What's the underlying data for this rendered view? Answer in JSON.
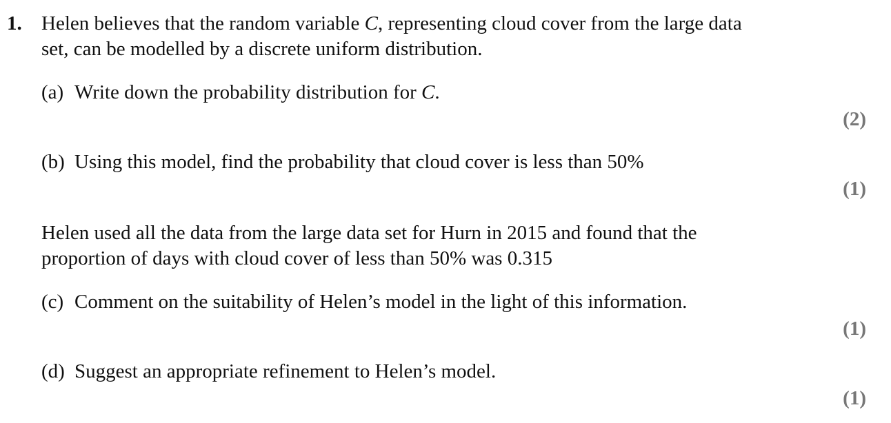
{
  "question": {
    "number": "1.",
    "intro_line1_a": "Helen believes that the random variable ",
    "intro_var": "C",
    "intro_line1_b": ", representing cloud cover from the large data",
    "intro_line2": "set, can be modelled by a discrete uniform distribution.",
    "parts": [
      {
        "label": "(a)",
        "text": "Write down the probability distribution for ",
        "var": "C",
        "text_end": ".",
        "marks": "(2)"
      },
      {
        "label": "(b)",
        "text": "Using this model, find the probability that cloud cover is less than 50%",
        "marks": "(1)"
      },
      {
        "label": "(c)",
        "text": "Comment on the suitability of Helen’s model in the light of this information.",
        "marks": "(1)"
      },
      {
        "label": "(d)",
        "text": "Suggest an appropriate refinement to Helen’s model.",
        "marks": "(1)"
      }
    ],
    "info_line1": "Helen used all the data from the large data set for Hurn in 2015 and found that the",
    "info_line2": "proportion of days with cloud cover of less than 50% was 0.315"
  }
}
